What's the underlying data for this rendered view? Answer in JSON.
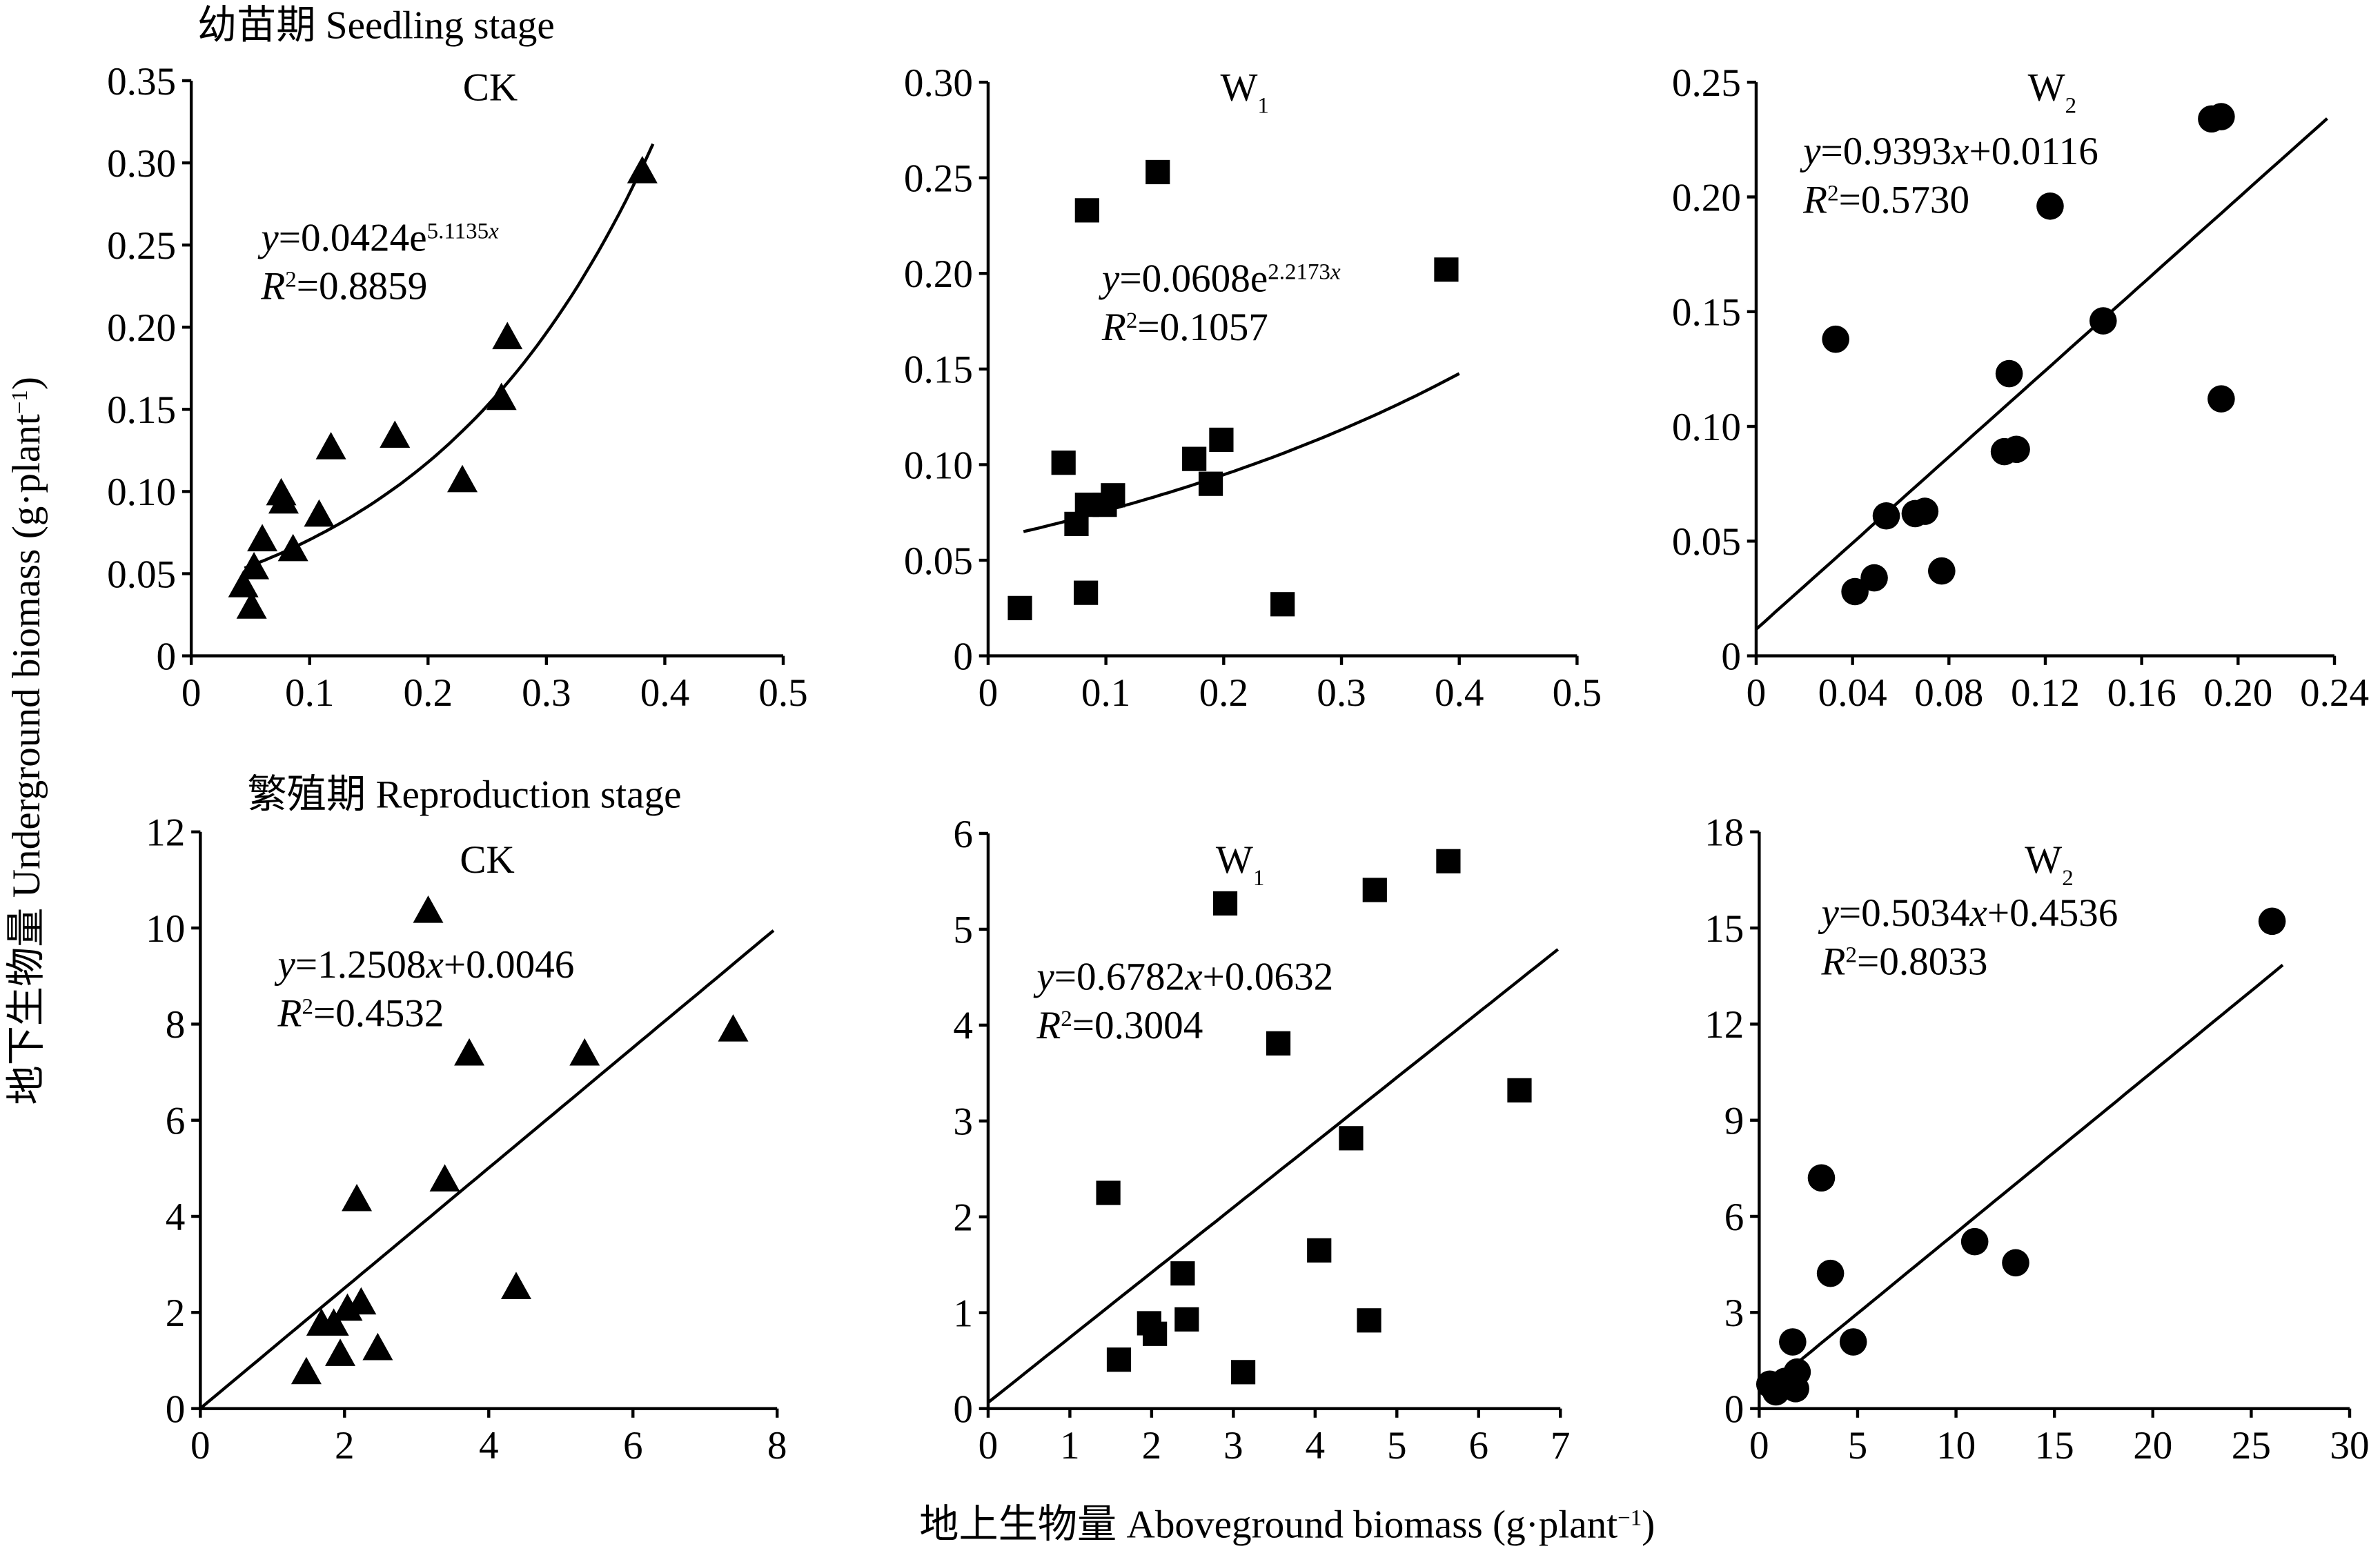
{
  "figure": {
    "stage_labels": [
      "幼苗期 Seedling stage",
      "繁殖期 Reproduction stage"
    ],
    "y_label": [
      {
        "text": "地下生物量 Underground biomass (g·plant"
      },
      {
        "text": "−1",
        "style": "sup"
      },
      {
        "text": ")"
      }
    ],
    "x_label": [
      {
        "text": "地上生物量 Aboveground biomass (g·plant"
      },
      {
        "text": "−1",
        "style": "sup"
      },
      {
        "text": ")"
      }
    ]
  },
  "chart_data": [
    {
      "type": "scatter",
      "title": [
        {
          "text": "CK"
        }
      ],
      "marker": "triangle",
      "color": "#000000",
      "x": [
        0.381,
        0.267,
        0.262,
        0.229,
        0.172,
        0.118,
        0.108,
        0.076,
        0.078,
        0.086,
        0.06,
        0.053,
        0.044,
        0.051
      ],
      "values": [
        0.295,
        0.194,
        0.157,
        0.107,
        0.134,
        0.127,
        0.086,
        0.099,
        0.094,
        0.065,
        0.071,
        0.054,
        0.043,
        0.03
      ],
      "fit": {
        "kind": "exp",
        "a": 0.0424,
        "b": 5.1135,
        "xrange": [
          0.045,
          0.39
        ]
      },
      "equation": [
        {
          "text": "y",
          "style": "italic"
        },
        {
          "text": "=0.0424e"
        },
        {
          "text": "5.1135",
          "style": "sup"
        },
        {
          "text": "x",
          "style": "sup-italic"
        }
      ],
      "r_squared": [
        {
          "text": "R",
          "style": "italic"
        },
        {
          "text": "2",
          "style": "sup"
        },
        {
          "text": "=0.8859"
        }
      ],
      "xlim": [
        0,
        0.5
      ],
      "xticks": [
        0,
        0.1,
        0.2,
        0.3,
        0.4,
        0.5
      ],
      "ylim": [
        0,
        0.35
      ],
      "yticks": [
        0,
        0.05,
        {
          "value": 0.1,
          "label": "0.10"
        },
        0.15,
        {
          "value": 0.2,
          "label": "0.20"
        },
        0.25,
        {
          "value": 0.3,
          "label": "0.30"
        },
        0.35
      ]
    },
    {
      "type": "scatter",
      "title": [
        {
          "text": "W"
        },
        {
          "text": "1",
          "style": "sub"
        }
      ],
      "marker": "square",
      "color": "#000000",
      "x": [
        0.027,
        0.144,
        0.084,
        0.389,
        0.064,
        0.175,
        0.198,
        0.189,
        0.106,
        0.099,
        0.084,
        0.075,
        0.083,
        0.25
      ],
      "values": [
        0.025,
        0.253,
        0.233,
        0.202,
        0.101,
        0.103,
        0.113,
        0.09,
        0.084,
        0.079,
        0.079,
        0.069,
        0.033,
        0.027
      ],
      "fit": {
        "kind": "exp",
        "a": 0.0608,
        "b": 2.2173,
        "xrange": [
          0.03,
          0.4
        ]
      },
      "equation": [
        {
          "text": "y",
          "style": "italic"
        },
        {
          "text": "=0.0608e"
        },
        {
          "text": "2.2173",
          "style": "sup"
        },
        {
          "text": "x",
          "style": "sup-italic"
        }
      ],
      "r_squared": [
        {
          "text": "R",
          "style": "italic"
        },
        {
          "text": "2",
          "style": "sup"
        },
        {
          "text": "=0.1057"
        }
      ],
      "xlim": [
        0,
        0.5
      ],
      "xticks": [
        0,
        0.1,
        0.2,
        0.3,
        0.4,
        0.5
      ],
      "ylim": [
        0,
        0.3
      ],
      "yticks": [
        0,
        0.05,
        {
          "value": 0.1,
          "label": "0.10"
        },
        0.15,
        {
          "value": 0.2,
          "label": "0.20"
        },
        0.25,
        {
          "value": 0.3,
          "label": "0.30"
        }
      ]
    },
    {
      "type": "scatter",
      "title": [
        {
          "text": "W"
        },
        {
          "text": "2",
          "style": "sub"
        }
      ],
      "marker": "circle",
      "color": "#000000",
      "x": [
        0.193,
        0.189,
        0.122,
        0.144,
        0.105,
        0.193,
        0.108,
        0.103,
        0.033,
        0.054,
        0.07,
        0.066,
        0.077,
        0.049,
        0.041
      ],
      "values": [
        0.235,
        0.234,
        0.196,
        0.146,
        0.123,
        0.112,
        0.09,
        0.089,
        0.138,
        0.061,
        0.063,
        0.062,
        0.037,
        0.034,
        0.028
      ],
      "fit": {
        "kind": "linear",
        "a": 0.9393,
        "b": 0.0116,
        "xrange": [
          0,
          0.237
        ]
      },
      "equation": [
        {
          "text": "y",
          "style": "italic"
        },
        {
          "text": "=0.9393"
        },
        {
          "text": "x",
          "style": "italic"
        },
        {
          "text": "+0.0116"
        }
      ],
      "r_squared": [
        {
          "text": "R",
          "style": "italic"
        },
        {
          "text": "2",
          "style": "sup"
        },
        {
          "text": "=0.5730"
        }
      ],
      "xlim": [
        0,
        0.24
      ],
      "xticks": [
        0,
        0.04,
        0.08,
        0.12,
        0.16,
        {
          "value": 0.2,
          "label": "0.20"
        },
        0.24
      ],
      "ylim": [
        0,
        0.25
      ],
      "yticks": [
        0,
        0.05,
        {
          "value": 0.1,
          "label": "0.10"
        },
        0.15,
        {
          "value": 0.2,
          "label": "0.20"
        },
        0.25
      ]
    },
    {
      "type": "scatter",
      "title": [
        {
          "text": "CK"
        }
      ],
      "marker": "triangle",
      "color": "#000000",
      "x": [
        3.16,
        7.39,
        5.33,
        3.73,
        3.39,
        2.17,
        4.38,
        2.23,
        2.04,
        1.85,
        1.68,
        2.46,
        1.94,
        1.47
      ],
      "values": [
        10.36,
        7.89,
        7.39,
        7.39,
        4.77,
        4.36,
        2.53,
        2.21,
        2.08,
        1.77,
        1.77,
        1.26,
        1.14,
        0.76
      ],
      "fit": {
        "kind": "linear",
        "a": 1.2508,
        "b": 0.0046,
        "xrange": [
          0,
          7.95
        ]
      },
      "equation": [
        {
          "text": "y",
          "style": "italic"
        },
        {
          "text": "=1.2508"
        },
        {
          "text": "x",
          "style": "italic"
        },
        {
          "text": "+0.0046"
        }
      ],
      "r_squared": [
        {
          "text": "R",
          "style": "italic"
        },
        {
          "text": "2",
          "style": "sup"
        },
        {
          "text": "=0.4532"
        }
      ],
      "xlim": [
        0,
        8
      ],
      "xticks": [
        0,
        2,
        4,
        6,
        8
      ],
      "ylim": [
        0,
        12
      ],
      "yticks": [
        0,
        2,
        4,
        6,
        8,
        10,
        12
      ]
    },
    {
      "type": "scatter",
      "title": [
        {
          "text": "W"
        },
        {
          "text": "1",
          "style": "sub"
        }
      ],
      "marker": "square",
      "color": "#000000",
      "x": [
        5.63,
        4.73,
        2.9,
        3.55,
        6.5,
        4.44,
        1.47,
        4.05,
        2.38,
        1.97,
        2.43,
        2.04,
        4.66,
        1.6,
        3.12
      ],
      "values": [
        5.71,
        5.41,
        5.27,
        3.81,
        3.32,
        2.82,
        2.25,
        1.65,
        1.41,
        0.89,
        0.93,
        0.78,
        0.92,
        0.51,
        0.38
      ],
      "fit": {
        "kind": "linear",
        "a": 0.6782,
        "b": 0.0632,
        "xrange": [
          0,
          6.97
        ]
      },
      "equation": [
        {
          "text": "y",
          "style": "italic"
        },
        {
          "text": "=0.6782"
        },
        {
          "text": "x",
          "style": "italic"
        },
        {
          "text": "+0.0632"
        }
      ],
      "r_squared": [
        {
          "text": "R",
          "style": "italic"
        },
        {
          "text": "2",
          "style": "sup"
        },
        {
          "text": "=0.3004"
        }
      ],
      "xlim": [
        0,
        7
      ],
      "xticks": [
        0,
        1,
        2,
        3,
        4,
        5,
        6,
        7
      ],
      "ylim": [
        0,
        6
      ],
      "yticks": [
        0,
        1,
        2,
        3,
        4,
        5,
        6
      ]
    },
    {
      "type": "scatter",
      "title": [
        {
          "text": "W"
        },
        {
          "text": "2",
          "style": "sub"
        }
      ],
      "marker": "circle",
      "color": "#000000",
      "x": [
        26.06,
        3.16,
        3.62,
        10.95,
        13.03,
        4.78,
        1.7,
        1.93,
        1.31,
        1.85,
        0.85,
        0.54
      ],
      "values": [
        15.21,
        7.2,
        4.22,
        5.21,
        4.55,
        2.08,
        2.08,
        1.14,
        0.85,
        0.62,
        0.52,
        0.76
      ],
      "fit": {
        "kind": "linear",
        "a": 0.5034,
        "b": 0.4536,
        "xrange": [
          0,
          26.6
        ]
      },
      "equation": [
        {
          "text": "y",
          "style": "italic"
        },
        {
          "text": "=0.5034"
        },
        {
          "text": "x",
          "style": "italic"
        },
        {
          "text": "+0.4536"
        }
      ],
      "r_squared": [
        {
          "text": "R",
          "style": "italic"
        },
        {
          "text": "2",
          "style": "sup"
        },
        {
          "text": "=0.8033"
        }
      ],
      "xlim": [
        0,
        30
      ],
      "xticks": [
        0,
        5,
        10,
        15,
        20,
        25,
        30
      ],
      "ylim": [
        0,
        18
      ],
      "yticks": [
        0,
        3,
        6,
        9,
        12,
        15,
        18
      ]
    }
  ]
}
